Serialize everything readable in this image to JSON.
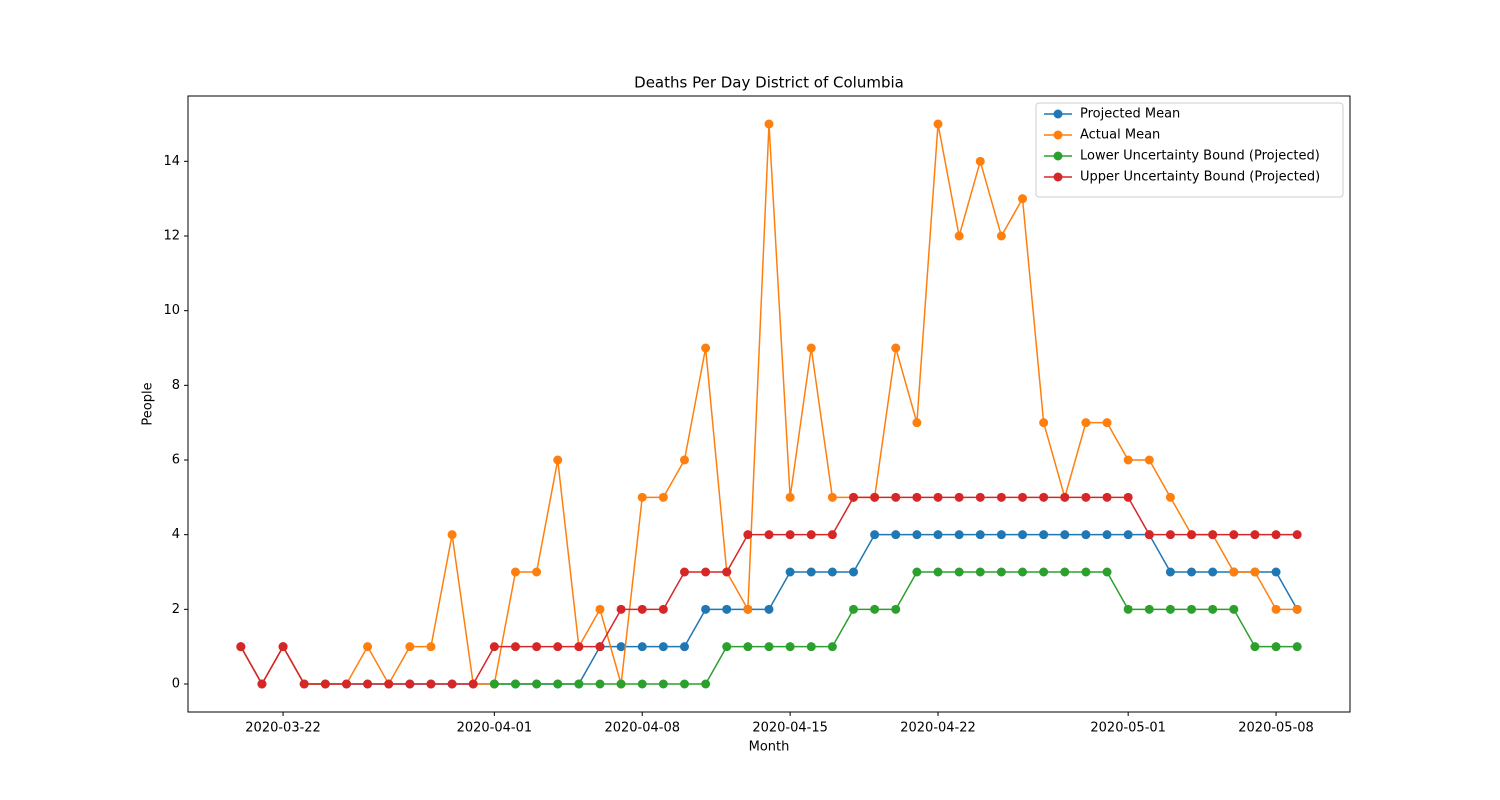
{
  "chart_data": {
    "type": "line",
    "title": "Deaths Per Day District of Columbia",
    "xlabel": "Month",
    "ylabel": "People",
    "x": [
      "2020-03-20",
      "2020-03-21",
      "2020-03-22",
      "2020-03-23",
      "2020-03-24",
      "2020-03-25",
      "2020-03-26",
      "2020-03-27",
      "2020-03-28",
      "2020-03-29",
      "2020-03-30",
      "2020-03-31",
      "2020-04-01",
      "2020-04-02",
      "2020-04-03",
      "2020-04-04",
      "2020-04-05",
      "2020-04-06",
      "2020-04-07",
      "2020-04-08",
      "2020-04-09",
      "2020-04-10",
      "2020-04-11",
      "2020-04-12",
      "2020-04-13",
      "2020-04-14",
      "2020-04-15",
      "2020-04-16",
      "2020-04-17",
      "2020-04-18",
      "2020-04-19",
      "2020-04-20",
      "2020-04-21",
      "2020-04-22",
      "2020-04-23",
      "2020-04-24",
      "2020-04-25",
      "2020-04-26",
      "2020-04-27",
      "2020-04-28",
      "2020-04-29",
      "2020-04-30",
      "2020-05-01",
      "2020-05-02",
      "2020-05-03",
      "2020-05-04",
      "2020-05-05",
      "2020-05-06",
      "2020-05-07",
      "2020-05-08",
      "2020-05-09"
    ],
    "series": [
      {
        "name": "Projected Mean",
        "color": "#1f77b4",
        "values": [
          1,
          0,
          1,
          0,
          0,
          0,
          0,
          0,
          0,
          0,
          0,
          0,
          0,
          0,
          0,
          0,
          0,
          1,
          1,
          1,
          1,
          1,
          2,
          2,
          2,
          2,
          3,
          3,
          3,
          3,
          4,
          4,
          4,
          4,
          4,
          4,
          4,
          4,
          4,
          4,
          4,
          4,
          4,
          4,
          3,
          3,
          3,
          3,
          3,
          3,
          2
        ]
      },
      {
        "name": "Actual Mean",
        "color": "#ff7f0e",
        "values": [
          1,
          0,
          1,
          0,
          0,
          0,
          1,
          0,
          1,
          1,
          4,
          0,
          0,
          3,
          3,
          6,
          1,
          2,
          0,
          5,
          5,
          6,
          9,
          3,
          2,
          15,
          5,
          9,
          5,
          5,
          5,
          9,
          7,
          15,
          12,
          14,
          12,
          13,
          7,
          5,
          7,
          7,
          6,
          6,
          5,
          4,
          4,
          3,
          3,
          2,
          2
        ]
      },
      {
        "name": "Lower Uncertainty Bound (Projected)",
        "color": "#2ca02c",
        "values": [
          null,
          null,
          null,
          null,
          null,
          null,
          null,
          null,
          null,
          null,
          null,
          null,
          0,
          0,
          0,
          0,
          0,
          0,
          0,
          0,
          0,
          0,
          0,
          1,
          1,
          1,
          1,
          1,
          1,
          2,
          2,
          2,
          3,
          3,
          3,
          3,
          3,
          3,
          3,
          3,
          3,
          3,
          2,
          2,
          2,
          2,
          2,
          2,
          1,
          1,
          1
        ]
      },
      {
        "name": "Upper Uncertainty Bound (Projected)",
        "color": "#d62728",
        "values": [
          1,
          0,
          1,
          0,
          0,
          0,
          0,
          0,
          0,
          0,
          0,
          0,
          1,
          1,
          1,
          1,
          1,
          1,
          2,
          2,
          2,
          3,
          3,
          3,
          4,
          4,
          4,
          4,
          4,
          5,
          5,
          5,
          5,
          5,
          5,
          5,
          5,
          5,
          5,
          5,
          5,
          5,
          5,
          4,
          4,
          4,
          4,
          4,
          4,
          4,
          4
        ]
      }
    ],
    "xlim": [
      "2020-03-17T12:00:00Z",
      "2020-05-11T12:00:00Z"
    ],
    "xticks": [
      "2020-03-22",
      "2020-04-01",
      "2020-04-08",
      "2020-04-15",
      "2020-04-22",
      "2020-05-01",
      "2020-05-08"
    ],
    "ylim": [
      -0.75,
      15.75
    ],
    "yticks": [
      0,
      2,
      4,
      6,
      8,
      10,
      12,
      14
    ],
    "legend": "upper right"
  }
}
